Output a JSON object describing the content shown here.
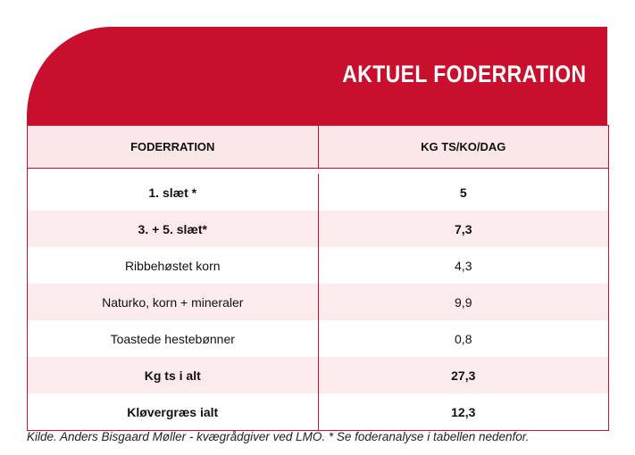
{
  "header": {
    "title": "AKTUEL FODERRATION"
  },
  "table": {
    "columns": [
      "FODERRATION",
      "KG TS/KO/DAG"
    ],
    "rows": [
      [
        "1. slæt *",
        "5"
      ],
      [
        "3. +  5. slæt*",
        "7,3"
      ],
      [
        "Ribbehøstet korn",
        "4,3"
      ],
      [
        "Naturko, korn  + mineraler",
        "9,9"
      ],
      [
        "Toastede hestebønner",
        "0,8"
      ],
      [
        "Kg ts i alt",
        "27,3"
      ],
      [
        "Kløvergræs ialt",
        "12,3"
      ]
    ]
  },
  "footer": {
    "note": "Kilde. Anders Bisgaard Møller - kvægrådgiver ved LMO. * Se foderanalyse i tabellen nedenfor."
  }
}
